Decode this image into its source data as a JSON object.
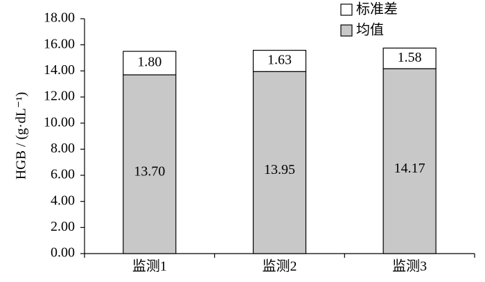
{
  "chart_data": {
    "type": "stacked_bar",
    "y_label": "HGB / (g·dL⁻¹)",
    "categories": [
      "监测1",
      "监测2",
      "监测3"
    ],
    "series": [
      {
        "name": "均值",
        "color": "#c8c8c8",
        "values": [
          13.7,
          13.95,
          14.17
        ],
        "value_labels": [
          "13.70",
          "13.95",
          "14.17"
        ]
      },
      {
        "name": "标准差",
        "color": "#ffffff",
        "values": [
          1.8,
          1.63,
          1.58
        ],
        "value_labels": [
          "1.80",
          "1.63",
          "1.58"
        ]
      }
    ],
    "ylim": [
      0,
      18
    ],
    "yticks": [
      {
        "value": 0,
        "label": "0.00"
      },
      {
        "value": 2,
        "label": "2.00"
      },
      {
        "value": 4,
        "label": "4.00"
      },
      {
        "value": 6,
        "label": "6.00"
      },
      {
        "value": 8,
        "label": "8.00"
      },
      {
        "value": 10,
        "label": "10.00"
      },
      {
        "value": 12,
        "label": "12.00"
      },
      {
        "value": 14,
        "label": "14.00"
      },
      {
        "value": 16,
        "label": "16.00"
      },
      {
        "value": 18,
        "label": "18.00"
      }
    ],
    "legend": "top-right"
  }
}
